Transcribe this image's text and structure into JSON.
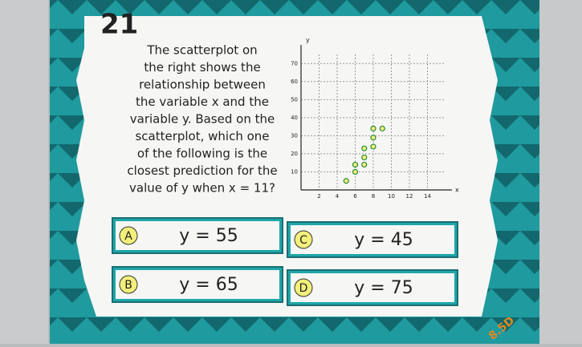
{
  "number": "21",
  "question": {
    "lines": [
      "The scatterplot on",
      "the right shows the",
      "relationship between",
      "the variable x and the",
      "variable y. Based on the",
      "scatterplot, which one",
      "of the following is the",
      "closest prediction for the",
      "value of y when x = 11?"
    ]
  },
  "chart_data": {
    "type": "scatter",
    "x_label": "x",
    "y_label": "y",
    "x": [
      5,
      6,
      6,
      7,
      7,
      7,
      8,
      8,
      8,
      9
    ],
    "values": [
      5,
      10,
      14,
      14,
      18,
      23,
      24,
      29,
      34,
      34
    ],
    "color": "#2a8a3a",
    "xlim": [
      0,
      16
    ],
    "ylim": [
      0,
      75
    ],
    "xticks": [
      2,
      4,
      6,
      8,
      10,
      12,
      14
    ],
    "yticks": [
      10,
      20,
      30,
      40,
      50,
      60,
      70
    ],
    "grid": true
  },
  "options": [
    {
      "letter": "A",
      "text": "y = 55"
    },
    {
      "letter": "C",
      "text": "y = 45"
    },
    {
      "letter": "B",
      "text": "y = 65"
    },
    {
      "letter": "D",
      "text": "y = 75"
    }
  ],
  "code": "8.5D"
}
